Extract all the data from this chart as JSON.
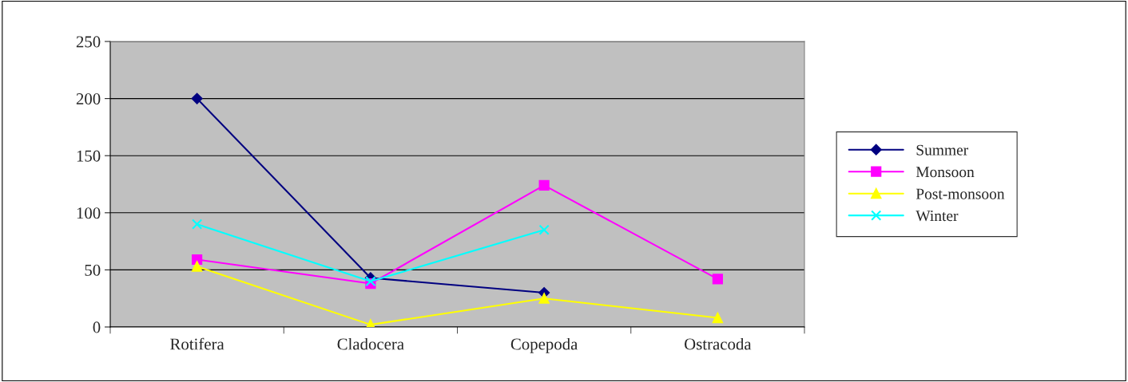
{
  "chart_data": {
    "type": "line",
    "categories": [
      "Rotifera",
      "Cladocera",
      "Copepoda",
      "Ostracoda"
    ],
    "series": [
      {
        "name": "Summer",
        "color": "#000080",
        "marker": "diamond",
        "values": [
          200,
          43,
          30,
          null
        ]
      },
      {
        "name": "Monsoon",
        "color": "#ff00ff",
        "marker": "square",
        "values": [
          59,
          38,
          124,
          42
        ]
      },
      {
        "name": "Post-monsoon",
        "color": "#ffff00",
        "marker": "triangle",
        "values": [
          53,
          2,
          25,
          8
        ]
      },
      {
        "name": "Winter",
        "color": "#00ffff",
        "marker": "cross",
        "values": [
          90,
          40,
          85,
          null
        ]
      }
    ],
    "ylim": [
      0,
      250
    ],
    "yticks": [
      0,
      50,
      100,
      150,
      200,
      250
    ],
    "grid": "y",
    "legend": "right",
    "line_style": "solid"
  }
}
